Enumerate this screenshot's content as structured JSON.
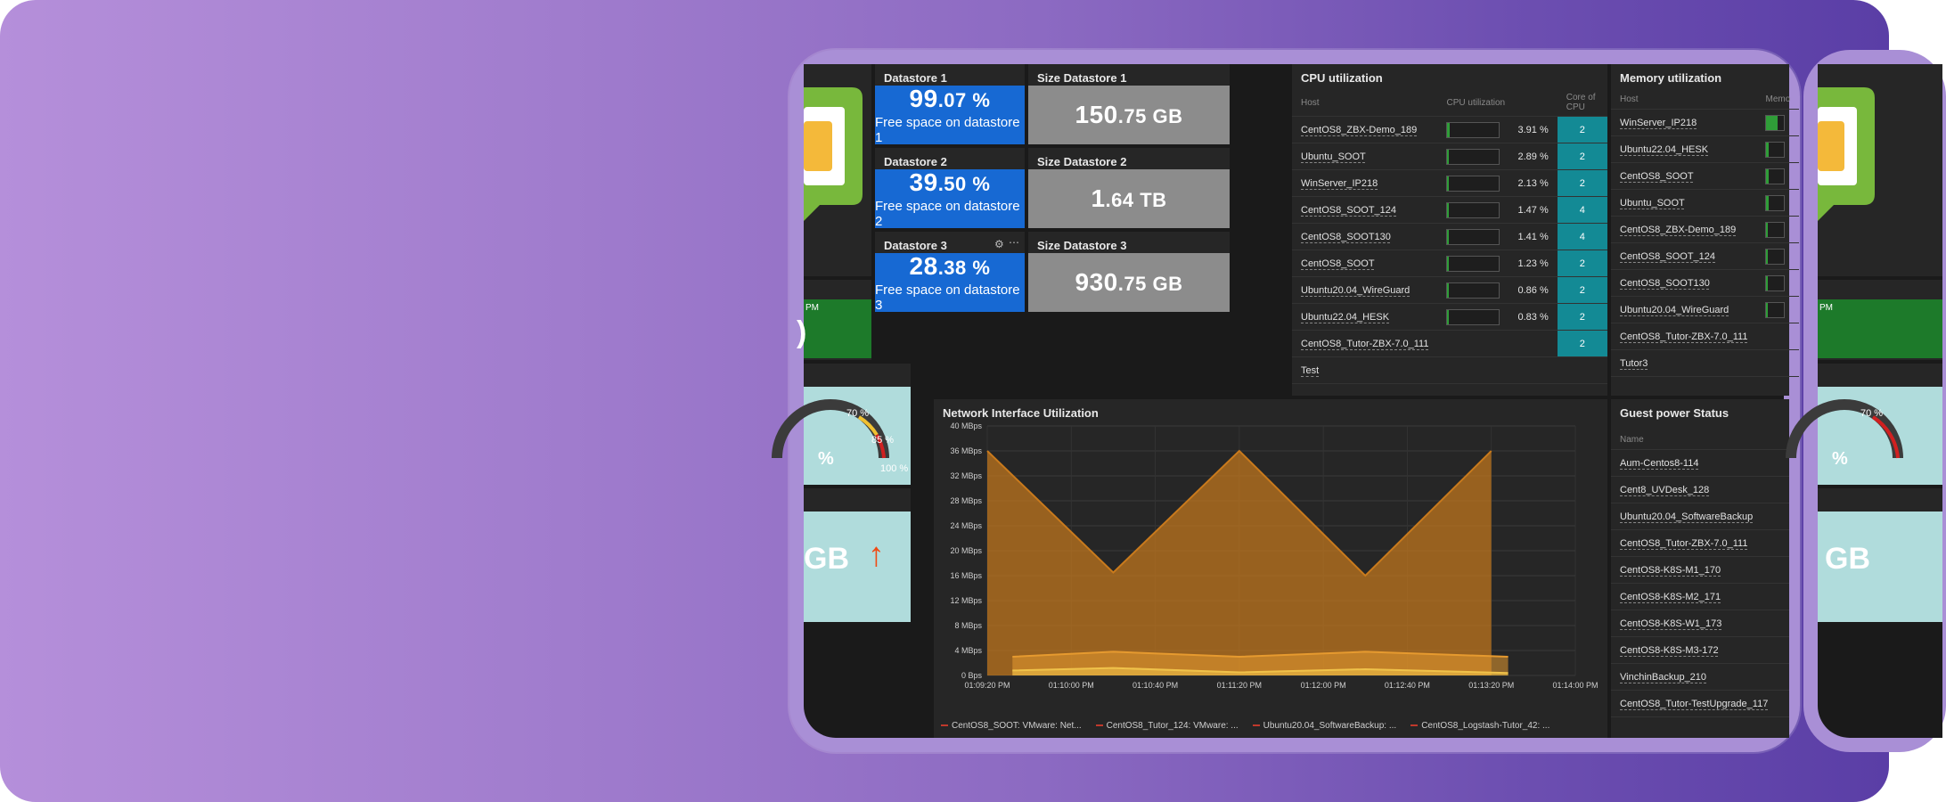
{
  "datastores": [
    {
      "title": "Datastore 1",
      "int": "99",
      "dec": ".07",
      "unit": " %",
      "caption": "Free space on datastore 1"
    },
    {
      "title": "Datastore 2",
      "int": "39",
      "dec": ".50",
      "unit": " %",
      "caption": "Free space on datastore 2"
    },
    {
      "title": "Datastore 3",
      "int": "28",
      "dec": ".38",
      "unit": " %",
      "caption": "Free space on datastore 3"
    }
  ],
  "sizes": [
    {
      "title": "Size Datastore 1",
      "int": "150",
      "dec": ".75",
      "unit": " GB"
    },
    {
      "title": "Size Datastore 2",
      "int": "1",
      "dec": ".64",
      "unit": " TB"
    },
    {
      "title": "Size Datastore 3",
      "int": "930",
      "dec": ".75",
      "unit": " GB"
    }
  ],
  "cpu": {
    "title": "CPU utilization",
    "headers": [
      "Host",
      "CPU utilization",
      "Core of CPU"
    ],
    "rows": [
      {
        "host": "CentOS8_ZBX-Demo_189",
        "pct": "3.91 %",
        "core": "2",
        "fill": 0.0391
      },
      {
        "host": "Ubuntu_SOOT",
        "pct": "2.89 %",
        "core": "2",
        "fill": 0.0289
      },
      {
        "host": "WinServer_IP218",
        "pct": "2.13 %",
        "core": "2",
        "fill": 0.0213
      },
      {
        "host": "CentOS8_SOOT_124",
        "pct": "1.47 %",
        "core": "4",
        "fill": 0.0147
      },
      {
        "host": "CentOS8_SOOT130",
        "pct": "1.41 %",
        "core": "4",
        "fill": 0.0141
      },
      {
        "host": "CentOS8_SOOT",
        "pct": "1.23 %",
        "core": "2",
        "fill": 0.0123
      },
      {
        "host": "Ubuntu20.04_WireGuard",
        "pct": "0.86 %",
        "core": "2",
        "fill": 0.0086
      },
      {
        "host": "Ubuntu22.04_HESK",
        "pct": "0.83 %",
        "core": "2",
        "fill": 0.0083
      },
      {
        "host": "CentOS8_Tutor-ZBX-7.0_111",
        "pct": "",
        "core": "2",
        "fill": 0
      },
      {
        "host": "Test",
        "pct": "",
        "core": "",
        "fill": 0
      }
    ]
  },
  "memory": {
    "title": "Memory utilization",
    "headers": [
      "Host",
      "Memo"
    ],
    "rows": [
      {
        "host": "WinServer_IP218",
        "fill": 0.62
      },
      {
        "host": "Ubuntu22.04_HESK",
        "fill": 0.12
      },
      {
        "host": "CentOS8_SOOT",
        "fill": 0.12
      },
      {
        "host": "Ubuntu_SOOT",
        "fill": 0.12
      },
      {
        "host": "CentOS8_ZBX-Demo_189",
        "fill": 0.1
      },
      {
        "host": "CentOS8_SOOT_124",
        "fill": 0.1
      },
      {
        "host": "CentOS8_SOOT130",
        "fill": 0.08
      },
      {
        "host": "Ubuntu20.04_WireGuard",
        "fill": 0.06
      },
      {
        "host": "CentOS8_Tutor-ZBX-7.0_111",
        "fill": 0
      },
      {
        "host": "Tutor3",
        "fill": 0
      }
    ]
  },
  "guest": {
    "title": "Guest power Status",
    "header": "Name",
    "rows": [
      "Aum-Centos8-114",
      "Cent8_UVDesk_128",
      "Ubuntu20.04_SoftwareBackup",
      "CentOS8_Tutor-ZBX-7.0_111",
      "CentOS8-K8S-M1_170",
      "CentOS8-K8S-M2_171",
      "CentOS8-K8S-W1_173",
      "CentOS8-K8S-M3-172",
      "VinchinBackup_210",
      "CentOS8_Tutor-TestUpgrade_117"
    ]
  },
  "left": {
    "pm": "PM",
    "gauge": {
      "p70": "70 %",
      "p85": "85 %",
      "p100": "100 %",
      "value_suffix": "%"
    },
    "gb_text": "GB",
    "arrow": "↑"
  },
  "network": {
    "title": "Network Interface Utilization",
    "legend": [
      "CentOS8_SOOT: VMware: Net...",
      "CentOS8_Tutor_124: VMware: ...",
      "Ubuntu20.04_SoftwareBackup: ...",
      "CentOS8_Logstash-Tutor_42: ..."
    ]
  },
  "chart_data": {
    "type": "area",
    "title": "Network Interface Utilization",
    "x": [
      "01:09:20 PM",
      "01:10:00 PM",
      "01:10:40 PM",
      "01:11:20 PM",
      "01:12:00 PM",
      "01:12:40 PM",
      "01:13:20 PM",
      "01:14:00 PM"
    ],
    "yticks": [
      "0 Bps",
      "4 MBps",
      "8 MBps",
      "12 MBps",
      "16 MBps",
      "20 MBps",
      "24 MBps",
      "28 MBps",
      "32 MBps",
      "36 MBps",
      "40 MBps"
    ],
    "ylim": [
      0,
      40
    ],
    "series": [
      {
        "name": "CentOS8_SOOT: VMware: Net...",
        "color": "#c97a1c",
        "points": [
          [
            0,
            36
          ],
          [
            1.5,
            16.5
          ],
          [
            3,
            36
          ],
          [
            4.5,
            16
          ],
          [
            6,
            36
          ]
        ]
      },
      {
        "name": "CentOS8_Tutor_124: VMware: ...",
        "color": "#e69a2f",
        "points": [
          [
            0.3,
            3
          ],
          [
            1.5,
            3.8
          ],
          [
            3,
            3
          ],
          [
            4.5,
            3.8
          ],
          [
            6.2,
            3
          ]
        ]
      },
      {
        "name": "Ubuntu20.04_SoftwareBackup: ...",
        "color": "#f0c24a",
        "points": [
          [
            0.3,
            0.8
          ],
          [
            1.5,
            1.2
          ],
          [
            3,
            0.5
          ],
          [
            4.5,
            1
          ],
          [
            6.2,
            0.4
          ]
        ]
      }
    ]
  },
  "colors": {
    "blue_tile": "#1769d3",
    "gray_tile": "#8c8c8c",
    "core": "#138a95",
    "bar": "#2f9d38",
    "green_panel": "#1d7a2a",
    "teal_panel": "#b0dcdc"
  }
}
